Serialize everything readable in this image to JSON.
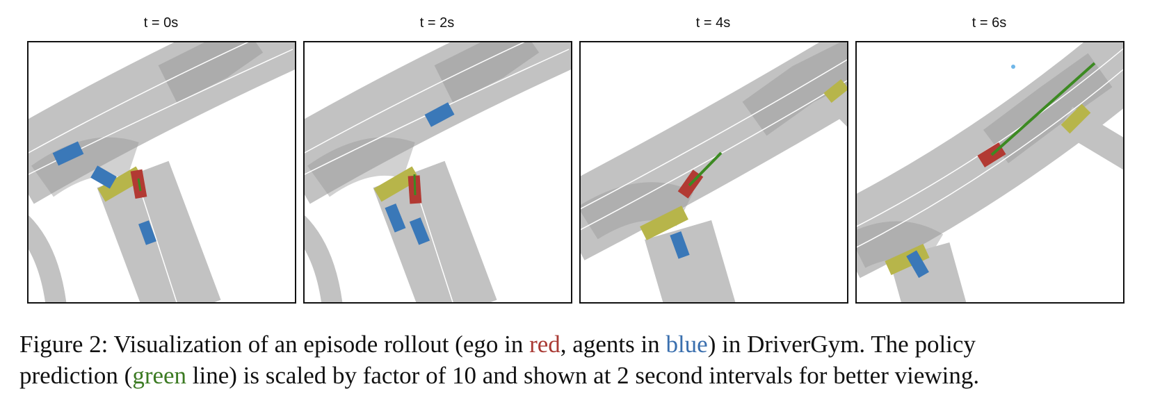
{
  "panels": [
    {
      "title": "t = 0s"
    },
    {
      "title": "t = 2s"
    },
    {
      "title": "t = 4s"
    },
    {
      "title": "t = 6s"
    }
  ],
  "colors": {
    "ego": "#b23a33",
    "agent": "#3a78b8",
    "prediction": "#3c8a22",
    "road": "#c2c2c2",
    "road_dark": "#9a9a9a",
    "crosswalk": "#b7b54a",
    "lane_line": "#ffffff"
  },
  "caption": {
    "p1": "Figure 2: Visualization of an episode rollout (ego in ",
    "red": "red",
    "p2": ", agents in ",
    "blue": "blue",
    "p3": ") in DriverGym. The policy",
    "p4": "prediction (",
    "green": "green",
    "p5": " line) is scaled by factor of 10 and shown at 2 second intervals for better viewing."
  }
}
